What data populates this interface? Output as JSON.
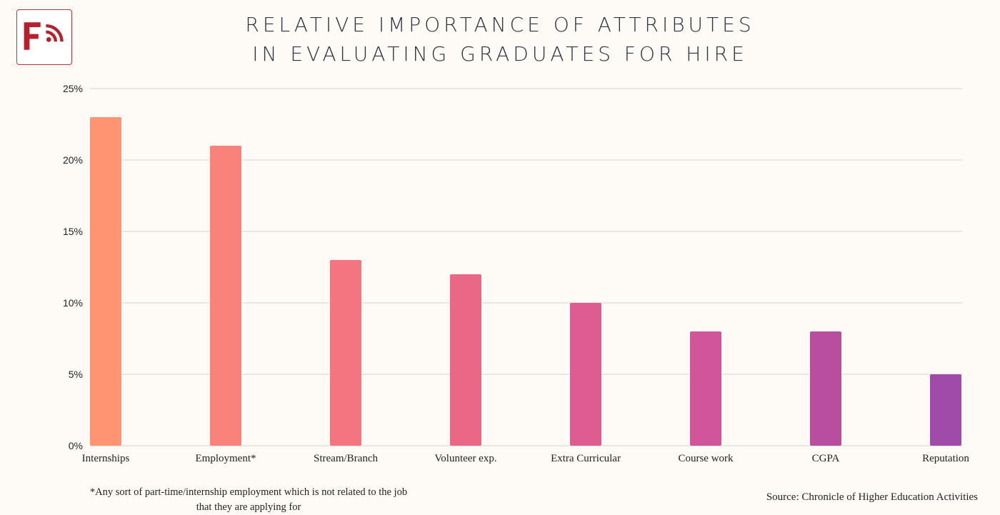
{
  "logo": {
    "text": "F",
    "icon": "rss-icon",
    "color": "#B5202A"
  },
  "title": {
    "line1": "RELATIVE IMPORTANCE OF ATTRIBUTES",
    "line2": "IN EVALUATING GRADUATES FOR HIRE"
  },
  "chart_data": {
    "type": "bar",
    "title": "RELATIVE IMPORTANCE OF ATTRIBUTES IN EVALUATING GRADUATES FOR HIRE",
    "categories": [
      "Internships",
      "Employment*",
      "Stream/Branch",
      "Volunteer exp.",
      "Extra Curricular",
      "Course work",
      "CGPA",
      "Reputation"
    ],
    "values": [
      23,
      21,
      13,
      12,
      10,
      8,
      8,
      5
    ],
    "colors": [
      "#FF9472",
      "#F9837A",
      "#F47580",
      "#EA6886",
      "#DE5C8F",
      "#D05699",
      "#BA4E9E",
      "#A04AAA"
    ],
    "yticks": [
      "0%",
      "5%",
      "10%",
      "15%",
      "20%",
      "25%"
    ],
    "ylim": [
      0,
      25
    ],
    "xlabel": "",
    "ylabel": "",
    "grid": true,
    "legend": "none"
  },
  "footnote": {
    "line1": "*Any sort of part-time/internship employment which is not related to the job",
    "line2": "that they are applying for"
  },
  "source": "Source: Chronicle of Higher Education Activities"
}
